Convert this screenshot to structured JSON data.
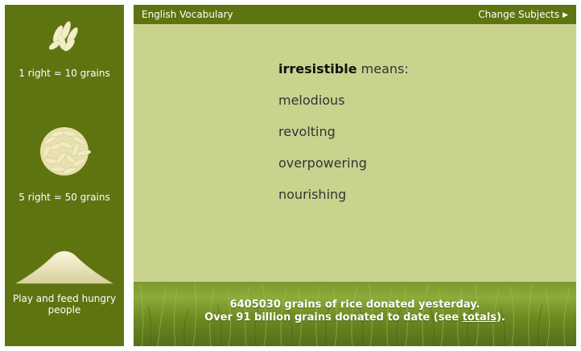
{
  "sidebar": {
    "tier1": {
      "caption": "1 right = 10 grains",
      "icon": "rice-grains-small-icon"
    },
    "tier2": {
      "caption": "5 right = 50 grains",
      "icon": "rice-grains-pile-icon"
    },
    "tier3": {
      "caption": "Play and feed hungry people",
      "icon": "rice-mound-icon"
    }
  },
  "topbar": {
    "subject": "English Vocabulary",
    "change_label": "Change Subjects",
    "arrow": "▶"
  },
  "quiz": {
    "word": "irresistible",
    "means": "means:",
    "options": [
      "melodious",
      "revolting",
      "overpowering",
      "nourishing"
    ]
  },
  "footer": {
    "line1": "6405030 grains of rice donated yesterday.",
    "line2_prefix": "Over 91 billion grains donated to date (see ",
    "line2_link": "totals",
    "line2_suffix": ")."
  },
  "colors": {
    "sidebar_bg": "#5e7410",
    "main_bg": "#c9d38e",
    "topbar_bg": "#5e7410"
  }
}
